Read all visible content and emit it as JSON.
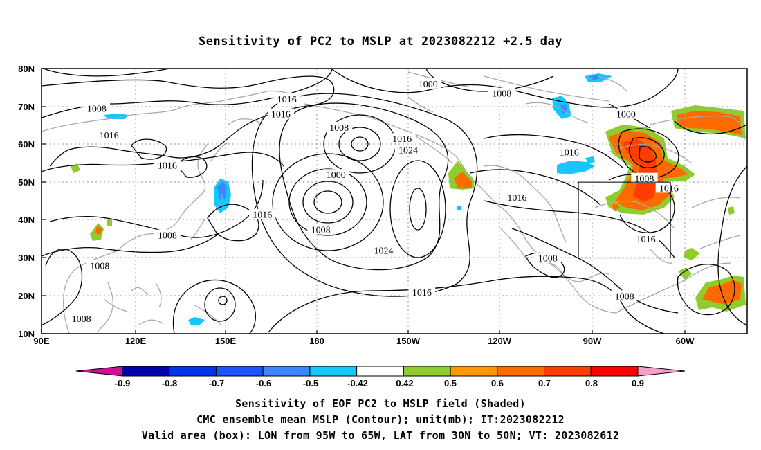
{
  "title": "Sensitivity of PC2 to MSLP at 2023082212 +2.5 day",
  "lat_labels": [
    "80N",
    "70N",
    "60N",
    "50N",
    "40N",
    "30N",
    "20N",
    "10N"
  ],
  "lon_labels": [
    "90E",
    "120E",
    "150E",
    "180",
    "150W",
    "120W",
    "90W",
    "60W"
  ],
  "contour_labels": [
    {
      "text": "1016",
      "lon": 170.0,
      "lat": 72.0
    },
    {
      "text": "1016",
      "lon": 168.0,
      "lat": 68.0
    },
    {
      "text": "1008",
      "lon": 108.0,
      "lat": 69.5
    },
    {
      "text": "1016",
      "lon": 112.0,
      "lat": 62.5
    },
    {
      "text": "1016",
      "lon": 131.0,
      "lat": 54.5
    },
    {
      "text": "1016",
      "lon": 162.0,
      "lat": 41.5
    },
    {
      "text": "1008",
      "lon": 131.0,
      "lat": 36.0
    },
    {
      "text": "1008",
      "lon": 109.0,
      "lat": 28.0
    },
    {
      "text": "1008",
      "lon": 103.0,
      "lat": 14.0
    },
    {
      "text": "1000",
      "lon": -144.0,
      "lat": 76.0
    },
    {
      "text": "1008",
      "lon": -120.0,
      "lat": 73.5
    },
    {
      "text": "1000",
      "lon": -79.5,
      "lat": 68.0
    },
    {
      "text": "1008",
      "lon": -173.0,
      "lat": 64.5
    },
    {
      "text": "1016",
      "lon": -152.5,
      "lat": 61.5
    },
    {
      "text": "1024",
      "lon": -150.5,
      "lat": 58.5
    },
    {
      "text": "1000",
      "lon": -174.0,
      "lat": 52.0
    },
    {
      "text": "1016",
      "lon": -98.0,
      "lat": 58.0
    },
    {
      "text": "1008",
      "lon": -73.5,
      "lat": 51.0
    },
    {
      "text": "1016",
      "lon": -65.5,
      "lat": 48.5
    },
    {
      "text": "1016",
      "lon": -115.0,
      "lat": 46.0
    },
    {
      "text": "1008",
      "lon": -179.0,
      "lat": 37.5
    },
    {
      "text": "1024",
      "lon": -158.5,
      "lat": 32.0
    },
    {
      "text": "1008",
      "lon": -105.0,
      "lat": 30.0
    },
    {
      "text": "1016",
      "lon": -73.0,
      "lat": 35.0
    },
    {
      "text": "1016",
      "lon": -146.0,
      "lat": 21.0
    },
    {
      "text": "1008",
      "lon": -80.0,
      "lat": 20.0
    }
  ],
  "valid_box": {
    "lon_min": -95,
    "lon_max": -65,
    "lat_min": 30,
    "lat_max": 50
  },
  "colorbar": {
    "labels": [
      "-0.9",
      "-0.8",
      "-0.7",
      "-0.6",
      "-0.5",
      "-0.42",
      "0.42",
      "0.5",
      "0.6",
      "0.7",
      "0.8",
      "0.9"
    ],
    "colors": [
      "#cc1190",
      "#0000b0",
      "#0033ee",
      "#1a55ff",
      "#3a88ff",
      "#14c8ff",
      "#ffffff",
      "#8fcc2e",
      "#ff9800",
      "#ff6a00",
      "#ff3d00",
      "#ff0000",
      "#f5a0c8"
    ]
  },
  "caption_lines": [
    "Sensitivity of EOF PC2 to MSLP field (Shaded)",
    "CMC ensemble mean MSLP (Contour); unit(mb); IT:2023082212",
    "Valid area (box): LON from 95W to 65W, LAT from 30N to 50N; VT: 2023082612"
  ]
}
